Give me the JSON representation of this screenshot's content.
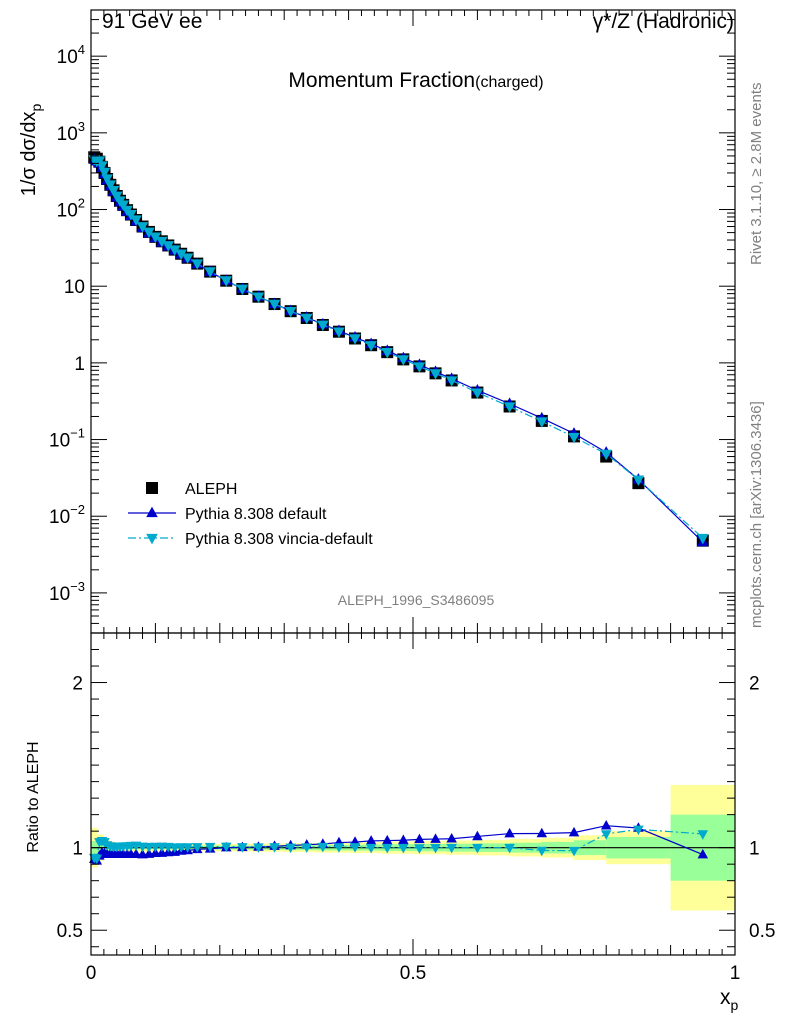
{
  "header": {
    "left": "91 GeV ee",
    "right": "γ*/Z (Hadronic)",
    "title": "Momentum Fraction",
    "title_suffix": "(charged)",
    "analysis": "ALEPH_1996_S3486095",
    "side_rivet": "Rivet 3.1.10, ≥ 2.8M events",
    "side_site": "mcplots.cern.ch [arXiv:1306.3436]"
  },
  "chart_data": [
    {
      "type": "scatter",
      "panel": "main",
      "yscale": "log",
      "ylabel": "1/σ dσ/dx",
      "ylabel_sub": "p",
      "xlim": [
        0,
        1
      ],
      "ylim": [
        0.0003,
        40000
      ],
      "y_ticks": [
        "10^-3",
        "10^-2",
        "10^-1",
        "1",
        "10",
        "10^2",
        "10^3",
        "10^4"
      ],
      "legend_position": "lower-left",
      "x": [
        0.005,
        0.009,
        0.013,
        0.017,
        0.021,
        0.025,
        0.03,
        0.035,
        0.04,
        0.045,
        0.05,
        0.056,
        0.062,
        0.07,
        0.08,
        0.09,
        0.1,
        0.11,
        0.12,
        0.13,
        0.14,
        0.15,
        0.165,
        0.185,
        0.21,
        0.235,
        0.26,
        0.285,
        0.31,
        0.335,
        0.36,
        0.385,
        0.41,
        0.435,
        0.46,
        0.485,
        0.51,
        0.535,
        0.56,
        0.6,
        0.65,
        0.7,
        0.75,
        0.8,
        0.85,
        0.95
      ],
      "series": [
        {
          "name": "ALEPH",
          "marker": "square",
          "color": "#000000",
          "values": [
            480,
            460,
            420,
            360,
            300,
            250,
            210,
            178,
            150,
            130,
            115,
            98,
            86,
            73,
            60,
            51,
            44,
            38.5,
            34,
            30,
            26.5,
            23.5,
            19.7,
            15.5,
            11.8,
            9.2,
            7.3,
            5.85,
            4.72,
            3.85,
            3.12,
            2.55,
            2.08,
            1.7,
            1.38,
            1.11,
            0.9,
            0.73,
            0.59,
            0.41,
            0.27,
            0.175,
            0.11,
            0.06,
            0.027,
            0.0048
          ]
        },
        {
          "name": "Pythia 8.308 default",
          "marker": "triangle-up",
          "color": "#0000cc",
          "line": "solid",
          "values": [
            446,
            424,
            400,
            350,
            290,
            240,
            202,
            171,
            144,
            125,
            110,
            94,
            82.5,
            70,
            57.5,
            49,
            42.5,
            37.2,
            33,
            29.2,
            26,
            23.1,
            19.5,
            15.4,
            11.8,
            9.22,
            7.33,
            5.9,
            4.78,
            3.92,
            3.19,
            2.63,
            2.15,
            1.77,
            1.44,
            1.16,
            0.945,
            0.768,
            0.622,
            0.438,
            0.293,
            0.19,
            0.12,
            0.068,
            0.0302,
            0.0046
          ]
        },
        {
          "name": "Pythia 8.308 vincia-default",
          "marker": "triangle-down",
          "color": "#00aacc",
          "line": "dashdot",
          "values": [
            450,
            430,
            435,
            375,
            310,
            254,
            212,
            179,
            151,
            131,
            116,
            99,
            87,
            74,
            60.5,
            51.3,
            44.3,
            38.8,
            34.2,
            30.1,
            26.6,
            23.6,
            19.8,
            15.6,
            11.9,
            9.25,
            7.32,
            5.88,
            4.73,
            3.86,
            3.14,
            2.56,
            2.09,
            1.7,
            1.38,
            1.11,
            0.898,
            0.73,
            0.59,
            0.41,
            0.27,
            0.172,
            0.108,
            0.065,
            0.03,
            0.0052
          ]
        }
      ]
    },
    {
      "type": "scatter",
      "panel": "ratio",
      "ylabel": "Ratio to ALEPH",
      "xlabel": "x",
      "xlabel_sub": "p",
      "xlim": [
        0,
        1
      ],
      "ylim": [
        0.35,
        2.3
      ],
      "x_ticks": [
        0,
        0.5,
        1
      ],
      "y_ticks": [
        0.5,
        1,
        2
      ],
      "bands": {
        "edges": [
          0,
          0.01,
          0.02,
          0.03,
          0.04,
          0.05,
          0.1,
          0.15,
          0.2,
          0.25,
          0.3,
          0.35,
          0.4,
          0.45,
          0.5,
          0.55,
          0.6,
          0.65,
          0.7,
          0.75,
          0.8,
          0.9,
          1.0
        ],
        "stat": [
          0.04,
          0.03,
          0.02,
          0.015,
          0.012,
          0.01,
          0.01,
          0.012,
          0.012,
          0.013,
          0.015,
          0.017,
          0.018,
          0.02,
          0.022,
          0.024,
          0.026,
          0.03,
          0.035,
          0.045,
          0.065,
          0.2
        ],
        "total": [
          0.12,
          0.08,
          0.05,
          0.035,
          0.03,
          0.025,
          0.022,
          0.022,
          0.023,
          0.025,
          0.027,
          0.03,
          0.033,
          0.037,
          0.04,
          0.043,
          0.047,
          0.053,
          0.06,
          0.075,
          0.1,
          0.38
        ],
        "stat_color": "#99ff99",
        "total_color": "#ffff99"
      },
      "series": [
        {
          "name": "Pythia 8.308 default",
          "marker": "triangle-up",
          "color": "#0000cc",
          "line": "solid",
          "values": [
            0.93,
            0.92,
            0.95,
            0.97,
            0.965,
            0.96,
            0.962,
            0.962,
            0.96,
            0.962,
            0.96,
            0.96,
            0.96,
            0.96,
            0.958,
            0.961,
            0.966,
            0.967,
            0.971,
            0.973,
            0.98,
            0.983,
            0.99,
            0.993,
            1.0,
            1.002,
            1.004,
            1.009,
            1.013,
            1.018,
            1.022,
            1.031,
            1.034,
            1.041,
            1.043,
            1.045,
            1.05,
            1.052,
            1.054,
            1.068,
            1.085,
            1.086,
            1.091,
            1.133,
            1.119,
            0.958
          ]
        },
        {
          "name": "Pythia 8.308 vincia-default",
          "marker": "triangle-down",
          "color": "#00aacc",
          "line": "dashdot",
          "values": [
            0.94,
            0.935,
            1.035,
            1.042,
            1.035,
            1.016,
            1.01,
            1.006,
            1.007,
            1.008,
            1.009,
            1.01,
            1.012,
            1.014,
            1.008,
            1.006,
            1.007,
            1.008,
            1.006,
            1.003,
            1.004,
            1.004,
            1.005,
            1.006,
            1.008,
            1.005,
            1.003,
            1.005,
            1.002,
            1.003,
            1.006,
            1.004,
            1.005,
            1.0,
            1.0,
            1.0,
            0.998,
            1.0,
            1.0,
            1.0,
            1.0,
            0.983,
            0.982,
            1.083,
            1.111,
            1.083
          ]
        }
      ]
    }
  ]
}
